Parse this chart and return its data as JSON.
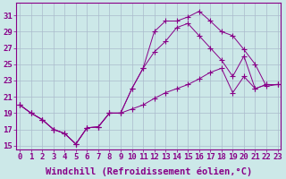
{
  "bg_color": "#cce8e8",
  "grid_color": "#aabbcc",
  "line_color": "#880088",
  "xlim": [
    -0.3,
    23.3
  ],
  "ylim": [
    14.5,
    32.5
  ],
  "yticks": [
    15,
    17,
    19,
    21,
    23,
    25,
    27,
    29,
    31
  ],
  "xticks": [
    0,
    1,
    2,
    3,
    4,
    5,
    6,
    7,
    8,
    9,
    10,
    11,
    12,
    13,
    14,
    15,
    16,
    17,
    18,
    19,
    20,
    21,
    22,
    23
  ],
  "line1_x": [
    0,
    1,
    2,
    3,
    4,
    5,
    6,
    7,
    8,
    9,
    10,
    11,
    12,
    13,
    14,
    15,
    16,
    17,
    18,
    19,
    20,
    21,
    22,
    23
  ],
  "line1_y": [
    20.0,
    19.0,
    18.2,
    17.0,
    16.5,
    15.2,
    17.2,
    17.3,
    19.0,
    19.0,
    19.5,
    20.0,
    20.8,
    21.5,
    22.0,
    22.5,
    23.2,
    24.0,
    24.5,
    21.5,
    23.5,
    22.0,
    22.5,
    22.5
  ],
  "line2_x": [
    0,
    1,
    2,
    3,
    4,
    5,
    6,
    7,
    8,
    9,
    10,
    11,
    12,
    13,
    14,
    15,
    16,
    17,
    18,
    19,
    20,
    21,
    22,
    23
  ],
  "line2_y": [
    20.0,
    19.0,
    18.2,
    17.0,
    16.5,
    15.2,
    17.2,
    17.3,
    19.0,
    19.0,
    22.0,
    24.5,
    26.5,
    27.8,
    29.5,
    30.0,
    28.5,
    27.0,
    25.5,
    23.5,
    26.0,
    22.0,
    22.5,
    22.5
  ],
  "line3_x": [
    0,
    1,
    2,
    3,
    4,
    5,
    6,
    7,
    8,
    9,
    10,
    11,
    12,
    13,
    14,
    15,
    16,
    17,
    18,
    19,
    20,
    21,
    22,
    23
  ],
  "line3_y": [
    20.0,
    19.0,
    18.2,
    17.0,
    16.5,
    15.2,
    17.2,
    17.3,
    19.0,
    19.0,
    22.0,
    24.5,
    29.0,
    30.3,
    30.3,
    30.8,
    31.5,
    30.3,
    29.0,
    28.5,
    26.8,
    25.0,
    22.3,
    22.5
  ],
  "xlabel": "Windchill (Refroidissement éolien,°C)",
  "xlabel_fontsize": 7.5,
  "tick_fontsize": 6.5
}
